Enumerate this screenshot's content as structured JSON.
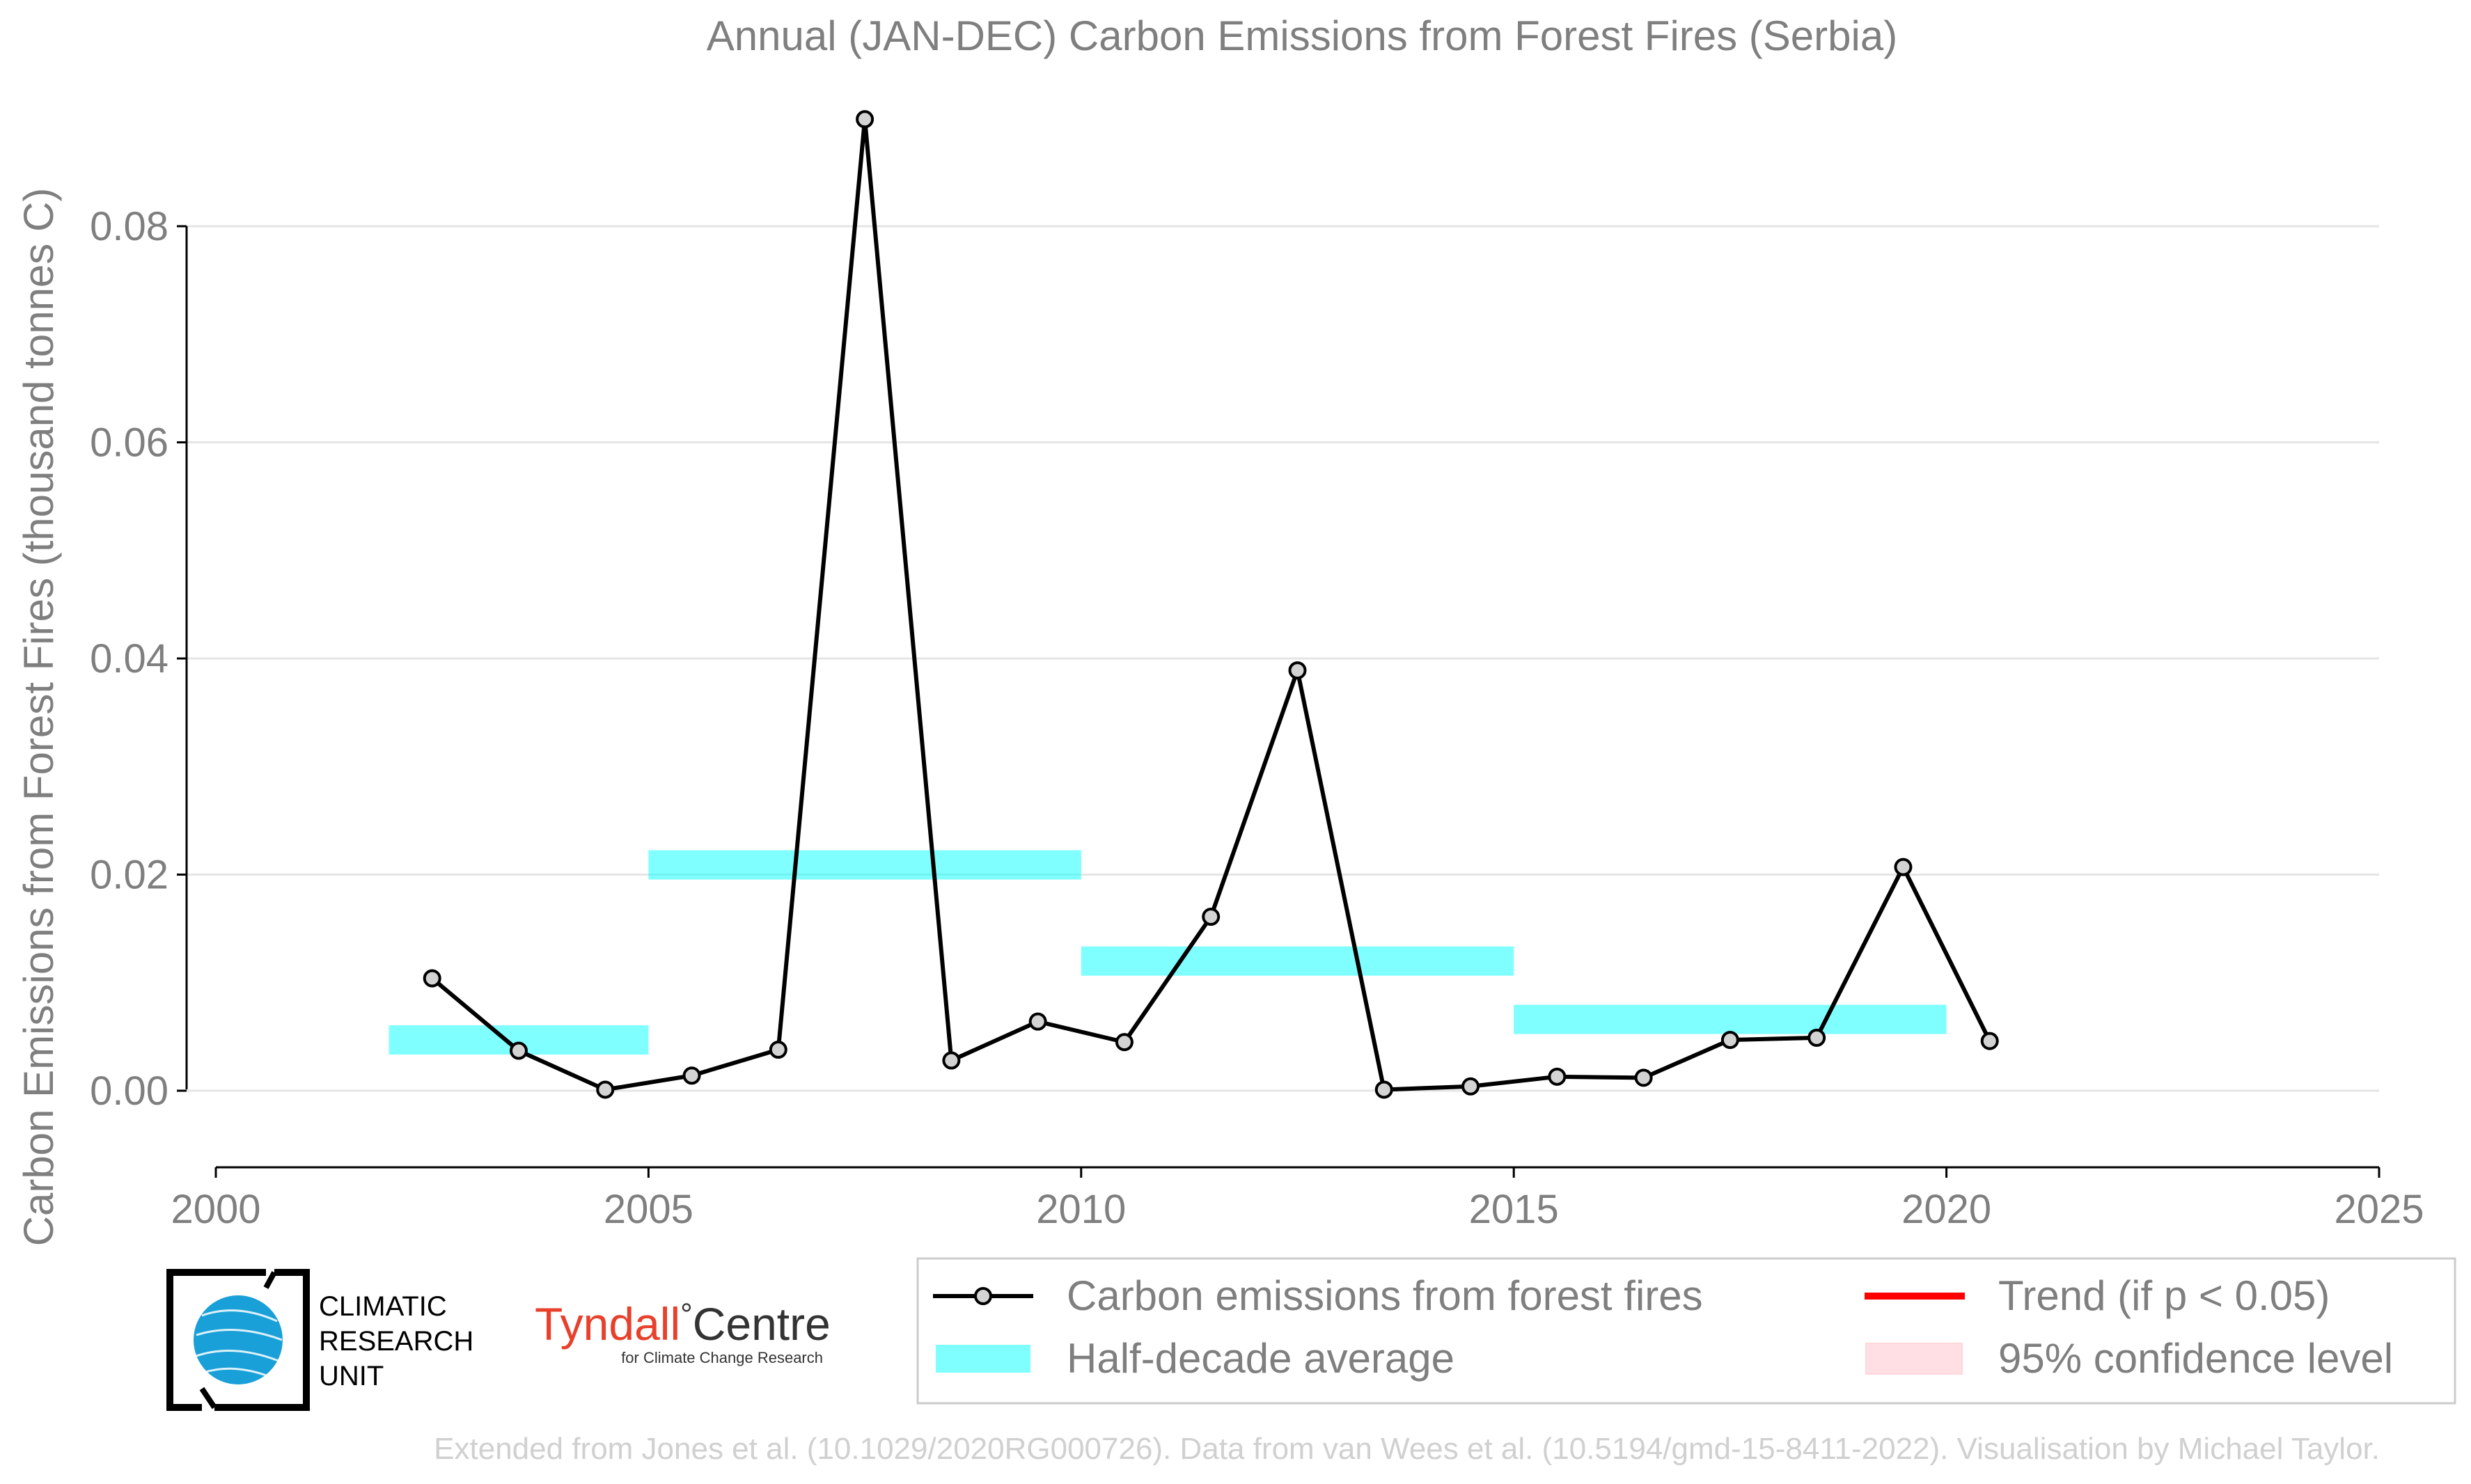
{
  "chart_data": {
    "type": "line",
    "title": "Annual (JAN-DEC) Carbon Emissions from Forest Fires (Serbia)",
    "xlabel": "",
    "ylabel": "Carbon Emissions from Forest Fires (thousand tonnes C)",
    "xlim": [
      2000,
      2025
    ],
    "ylim": [
      -0.0075,
      0.093
    ],
    "x_ticks": [
      2000,
      2005,
      2010,
      2015,
      2020,
      2025
    ],
    "x_tick_labels": [
      "2000",
      "2005",
      "2010",
      "2015",
      "2020",
      "2025"
    ],
    "y_ticks": [
      0.0,
      0.02,
      0.04,
      0.06,
      0.08
    ],
    "y_tick_labels": [
      "0.00",
      "0.02",
      "0.04",
      "0.06",
      "0.08"
    ],
    "grid": "horizontal",
    "legend_position": "bottom-right",
    "colors": {
      "series": "#000000",
      "marker_fill": "#d3d3d3",
      "half_decade": "#00ffff",
      "trend": "#ff0000",
      "confidence": "#ffc0c8",
      "text": "#7f7f7f",
      "grid": "#e5e5e5"
    },
    "series": [
      {
        "name": "Carbon emissions from forest fires",
        "x": [
          2002.5,
          2003.5,
          2004.5,
          2005.5,
          2006.5,
          2007.5,
          2008.5,
          2009.5,
          2010.5,
          2011.5,
          2012.5,
          2013.5,
          2014.5,
          2015.5,
          2016.5,
          2017.5,
          2018.5,
          2019.5,
          2020.5
        ],
        "values": [
          0.0104,
          0.0037,
          0.0001,
          0.0014,
          0.0038,
          0.0899,
          0.0028,
          0.0064,
          0.0045,
          0.0161,
          0.0389,
          0.0001,
          0.0004,
          0.0013,
          0.0012,
          0.0047,
          0.0049,
          0.0207,
          0.0046
        ]
      }
    ],
    "half_decade_average": {
      "name": "Half-decade average",
      "segments": [
        {
          "x_start": 2002,
          "x_end": 2005,
          "value": 0.0047
        },
        {
          "x_start": 2005,
          "x_end": 2010,
          "value": 0.0209
        },
        {
          "x_start": 2010,
          "x_end": 2015,
          "value": 0.012
        },
        {
          "x_start": 2015,
          "x_end": 2020,
          "value": 0.0066
        }
      ]
    },
    "legend": [
      {
        "label": "Carbon emissions from forest fires",
        "kind": "line-marker"
      },
      {
        "label": "Half-decade average",
        "kind": "band"
      },
      {
        "label": "Trend (if p < 0.05)",
        "kind": "red-line"
      },
      {
        "label": "95% confidence level",
        "kind": "pink-patch"
      }
    ],
    "credit": "Extended from Jones et al. (10.1029/2020RG000726). Data from van Wees et al. (10.5194/gmd-15-8411-2022). Visualisation by Michael Taylor."
  },
  "logos": {
    "cru_lines": [
      "CLIMATIC",
      "RESEARCH",
      "UNIT"
    ],
    "tyndall_name": "Tyndall",
    "tyndall_degree": "°",
    "tyndall_centre": "Centre",
    "tyndall_sub": "for Climate Change Research"
  }
}
